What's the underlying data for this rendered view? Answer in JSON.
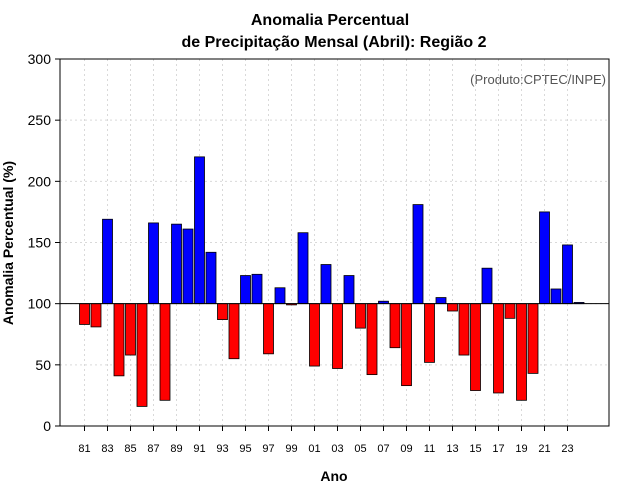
{
  "chart_data": {
    "type": "bar",
    "title": "Anomalia Percentual",
    "subtitle": "de Precipitação Mensal (Abril): Região 2",
    "xlabel": "Ano",
    "ylabel": "Anomalia Percentual (%)",
    "credit": "(Produto:CPTEC/INPE)",
    "ylim": [
      0,
      300
    ],
    "yticks": [
      0,
      50,
      100,
      150,
      200,
      250,
      300
    ],
    "baseline": 100,
    "grid": true,
    "colors": {
      "above": "#0000ff",
      "below": "#ff0000",
      "outline": "#000000",
      "grid": "#d9d9d9"
    },
    "x_tick_labels": [
      "81",
      "83",
      "85",
      "87",
      "89",
      "91",
      "93",
      "95",
      "97",
      "99",
      "01",
      "03",
      "05",
      "07",
      "09",
      "11",
      "13",
      "15",
      "17",
      "19",
      "21",
      "23"
    ],
    "categories": [
      "1981",
      "1982",
      "1983",
      "1984",
      "1985",
      "1986",
      "1987",
      "1988",
      "1989",
      "1990",
      "1991",
      "1992",
      "1993",
      "1994",
      "1995",
      "1996",
      "1997",
      "1998",
      "1999",
      "2000",
      "2001",
      "2002",
      "2003",
      "2004",
      "2005",
      "2006",
      "2007",
      "2008",
      "2009",
      "2010",
      "2011",
      "2012",
      "2013",
      "2014",
      "2015",
      "2016",
      "2017",
      "2018",
      "2019",
      "2020",
      "2021",
      "2022",
      "2023",
      "2024"
    ],
    "values": [
      83,
      81,
      169,
      41,
      58,
      16,
      166,
      21,
      165,
      161,
      220,
      142,
      87,
      55,
      123,
      124,
      59,
      113,
      99,
      158,
      49,
      132,
      47,
      123,
      80,
      42,
      102,
      64,
      33,
      181,
      52,
      105,
      94,
      58,
      29,
      129,
      27,
      88,
      21,
      43,
      175,
      112,
      148,
      101
    ]
  }
}
